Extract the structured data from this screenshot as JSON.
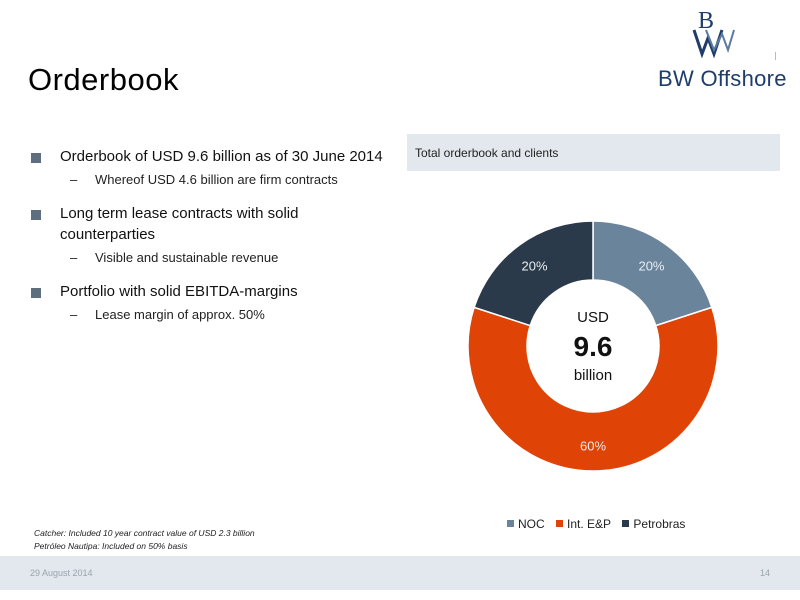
{
  "title": "Orderbook",
  "logo": {
    "text": "BW Offshore"
  },
  "bullets": [
    {
      "text": "Orderbook of USD 9.6 billion as of 30 June 2014",
      "sub": "Whereof USD 4.6 billion are firm contracts"
    },
    {
      "text": "Long term lease contracts with solid counterparties",
      "sub": "Visible and sustainable revenue"
    },
    {
      "text": "Portfolio with solid EBITDA-margins",
      "sub": "Lease margin of approx. 50%"
    }
  ],
  "panel": {
    "heading": "Total orderbook and clients"
  },
  "chart_data": {
    "type": "pie",
    "donut": true,
    "categories": [
      "NOC",
      "Int. E&P",
      "Petrobras"
    ],
    "values": [
      20,
      60,
      20
    ],
    "data_labels": [
      "20%",
      "60%",
      "20%"
    ],
    "colors": [
      "#6a849c",
      "#df4406",
      "#2b3a4a"
    ],
    "center_text": {
      "top": "USD",
      "value": "9.6",
      "bottom": "billion"
    },
    "legend_position": "bottom"
  },
  "notes": [
    "Catcher: Included 10 year contract value of USD 2.3 billion",
    "Petróleo Nautipa: Included on 50% basis"
  ],
  "footer": {
    "date": "29 August 2014",
    "page": "14"
  }
}
